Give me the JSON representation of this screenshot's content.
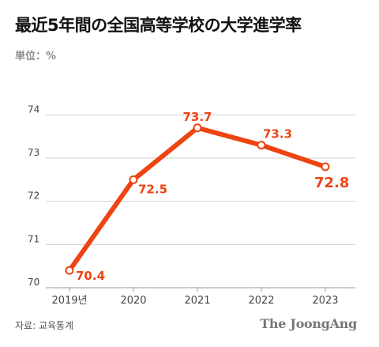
{
  "title": "最近5年間の全国高等学校の大学進学率",
  "unit_label": "単位：%",
  "source": "자료: 교육통계",
  "brand": "The JoongAng",
  "colors": {
    "line": "#ee4411",
    "grid": "#cfcfcf",
    "tick_text": "#444444",
    "label_text": "#ee4411"
  },
  "chart_data": {
    "type": "line",
    "title": "最近5年間の全国高等学校の大学進学率",
    "xlabel": "",
    "ylabel": "単位：%",
    "categories": [
      "2019년",
      "2020",
      "2021",
      "2022",
      "2023"
    ],
    "series": [
      {
        "values": [
          70.4,
          72.5,
          73.7,
          73.3,
          72.8
        ],
        "data_labels": [
          "70.4",
          "72.5",
          "73.7",
          "73.3",
          "72.8"
        ]
      }
    ],
    "ylim": [
      70,
      74.3
    ],
    "yticks": [
      70,
      71,
      72,
      73,
      74
    ],
    "ytick_labels": [
      "70",
      "71",
      "72",
      "73",
      "74"
    ],
    "grid": true,
    "legend": "none",
    "emphasized_label": "72.8"
  }
}
